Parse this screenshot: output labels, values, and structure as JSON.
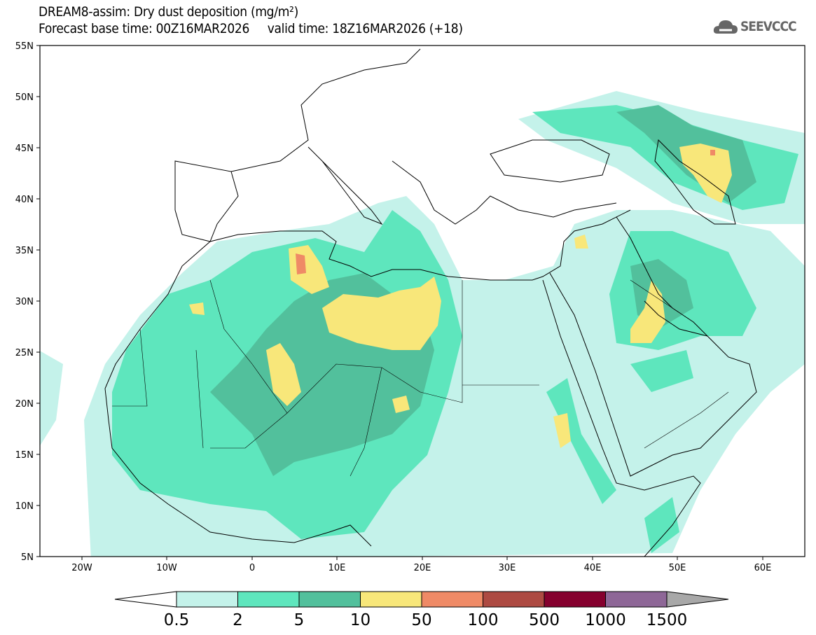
{
  "header": {
    "title": "DREAM8-assim: Dry dust deposition (mg/m²)",
    "base_time": "Forecast base time: 00Z16MAR2026",
    "valid_time": "valid time: 18Z16MAR2026 (+18)",
    "logo_text": "SEEVCCC"
  },
  "map": {
    "lat_labels": [
      "55N",
      "50N",
      "45N",
      "40N",
      "35N",
      "30N",
      "25N",
      "20N",
      "15N",
      "10N",
      "5N"
    ],
    "lon_labels": [
      "20W",
      "10W",
      "0",
      "10E",
      "20E",
      "30E",
      "40E",
      "50E",
      "60E"
    ]
  },
  "colorbar": {
    "levels": [
      "0.5",
      "2",
      "5",
      "10",
      "50",
      "100",
      "500",
      "1000",
      "1500"
    ],
    "colors": [
      "#c4f2ea",
      "#5ee6bd",
      "#52c09c",
      "#f8e77a",
      "#ef8a66",
      "#ad4a42",
      "#85002e",
      "#8e6797",
      "#a8a8a8"
    ]
  }
}
